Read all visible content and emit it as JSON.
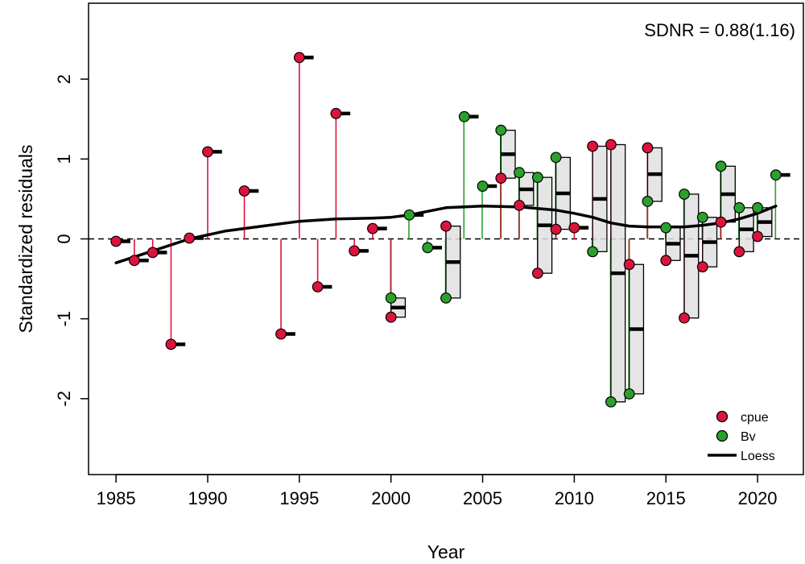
{
  "chart_data": {
    "type": "scatter",
    "title": "",
    "xlabel": "Year",
    "ylabel": "Standardized residuals",
    "xlim": [
      1983.5,
      2022.5
    ],
    "ylim": [
      -2.95,
      2.95
    ],
    "xticks": [
      1985,
      1990,
      1995,
      2000,
      2005,
      2010,
      2015,
      2020
    ],
    "yticks": [
      -2,
      -1,
      0,
      1,
      2
    ],
    "annotation": "SDNR = 0.88(1.16)",
    "legend_position": "bottom-right",
    "colors": {
      "cpue": "#DC143C",
      "Bv": "#2CA02C",
      "loess": "#000000",
      "box_fill": "#E0E0E0"
    },
    "series": [
      {
        "name": "cpue",
        "points": [
          [
            1985,
            -0.03
          ],
          [
            1986,
            -0.27
          ],
          [
            1987,
            -0.17
          ],
          [
            1988,
            -1.32
          ],
          [
            1989,
            0.01
          ],
          [
            1990,
            1.09
          ],
          [
            1992,
            0.6
          ],
          [
            1994,
            -1.19
          ],
          [
            1995,
            2.27
          ],
          [
            1996,
            -0.6
          ],
          [
            1997,
            1.57
          ],
          [
            1998,
            -0.15
          ],
          [
            1999,
            0.13
          ],
          [
            2000,
            -0.98
          ],
          [
            2003,
            0.16
          ],
          [
            2006,
            0.76
          ],
          [
            2007,
            0.42
          ],
          [
            2008,
            -0.43
          ],
          [
            2009,
            0.12
          ],
          [
            2010,
            0.14
          ],
          [
            2011,
            1.16
          ],
          [
            2012,
            1.18
          ],
          [
            2013,
            -0.32
          ],
          [
            2014,
            1.14
          ],
          [
            2015,
            -0.27
          ],
          [
            2016,
            -0.99
          ],
          [
            2017,
            -0.35
          ],
          [
            2018,
            0.21
          ],
          [
            2019,
            -0.16
          ],
          [
            2020,
            0.03
          ]
        ]
      },
      {
        "name": "Bv",
        "points": [
          [
            2000,
            -0.74
          ],
          [
            2001,
            0.3
          ],
          [
            2002,
            -0.11
          ],
          [
            2003,
            -0.74
          ],
          [
            2004,
            1.53
          ],
          [
            2005,
            0.66
          ],
          [
            2006,
            1.36
          ],
          [
            2007,
            0.83
          ],
          [
            2008,
            0.77
          ],
          [
            2009,
            1.02
          ],
          [
            2011,
            -0.16
          ],
          [
            2012,
            -2.04
          ],
          [
            2013,
            -1.94
          ],
          [
            2014,
            0.47
          ],
          [
            2015,
            0.14
          ],
          [
            2016,
            0.56
          ],
          [
            2017,
            0.27
          ],
          [
            2018,
            0.91
          ],
          [
            2019,
            0.39
          ],
          [
            2020,
            0.39
          ],
          [
            2021,
            0.8
          ]
        ]
      },
      {
        "name": "Loess",
        "x": [
          1985,
          1987,
          1989,
          1991,
          1993,
          1995,
          1997,
          1999,
          2000,
          2001,
          2003,
          2005,
          2007,
          2009,
          2010,
          2011,
          2012,
          2013,
          2014,
          2015,
          2016,
          2017,
          2018,
          2019,
          2020,
          2021
        ],
        "y": [
          -0.3,
          -0.15,
          0.0,
          0.1,
          0.16,
          0.22,
          0.25,
          0.26,
          0.27,
          0.3,
          0.39,
          0.41,
          0.4,
          0.36,
          0.32,
          0.27,
          0.2,
          0.16,
          0.15,
          0.15,
          0.15,
          0.17,
          0.2,
          0.25,
          0.32,
          0.41
        ]
      }
    ],
    "annual_medians": [
      [
        1985,
        -0.03
      ],
      [
        1986,
        -0.27
      ],
      [
        1987,
        -0.17
      ],
      [
        1988,
        -1.32
      ],
      [
        1989,
        0.01
      ],
      [
        1990,
        1.09
      ],
      [
        1992,
        0.6
      ],
      [
        1994,
        -1.19
      ],
      [
        1995,
        2.27
      ],
      [
        1996,
        -0.6
      ],
      [
        1997,
        1.57
      ],
      [
        1998,
        -0.15
      ],
      [
        1999,
        0.13
      ],
      [
        2000,
        -0.86
      ],
      [
        2001,
        0.3
      ],
      [
        2002,
        -0.11
      ],
      [
        2003,
        -0.29
      ],
      [
        2004,
        1.53
      ],
      [
        2005,
        0.66
      ],
      [
        2006,
        1.06
      ],
      [
        2007,
        0.62
      ],
      [
        2008,
        0.17
      ],
      [
        2009,
        0.57
      ],
      [
        2010,
        0.14
      ],
      [
        2011,
        0.5
      ],
      [
        2012,
        -0.43
      ],
      [
        2013,
        -1.13
      ],
      [
        2014,
        0.81
      ],
      [
        2015,
        -0.06
      ],
      [
        2016,
        -0.21
      ],
      [
        2017,
        -0.04
      ],
      [
        2018,
        0.56
      ],
      [
        2019,
        0.12
      ],
      [
        2020,
        0.21
      ],
      [
        2021,
        0.8
      ]
    ],
    "boxes": [
      [
        2000,
        -0.98,
        -0.74
      ],
      [
        2003,
        -0.74,
        0.16
      ],
      [
        2006,
        0.76,
        1.36
      ],
      [
        2007,
        0.42,
        0.83
      ],
      [
        2008,
        -0.43,
        0.77
      ],
      [
        2009,
        0.12,
        1.02
      ],
      [
        2011,
        -0.16,
        1.16
      ],
      [
        2012,
        -2.04,
        1.18
      ],
      [
        2013,
        -1.94,
        -0.32
      ],
      [
        2014,
        0.47,
        1.14
      ],
      [
        2015,
        -0.27,
        0.14
      ],
      [
        2016,
        -0.99,
        0.56
      ],
      [
        2017,
        -0.35,
        0.27
      ],
      [
        2018,
        0.21,
        0.91
      ],
      [
        2019,
        -0.16,
        0.39
      ],
      [
        2020,
        0.03,
        0.39
      ]
    ]
  }
}
